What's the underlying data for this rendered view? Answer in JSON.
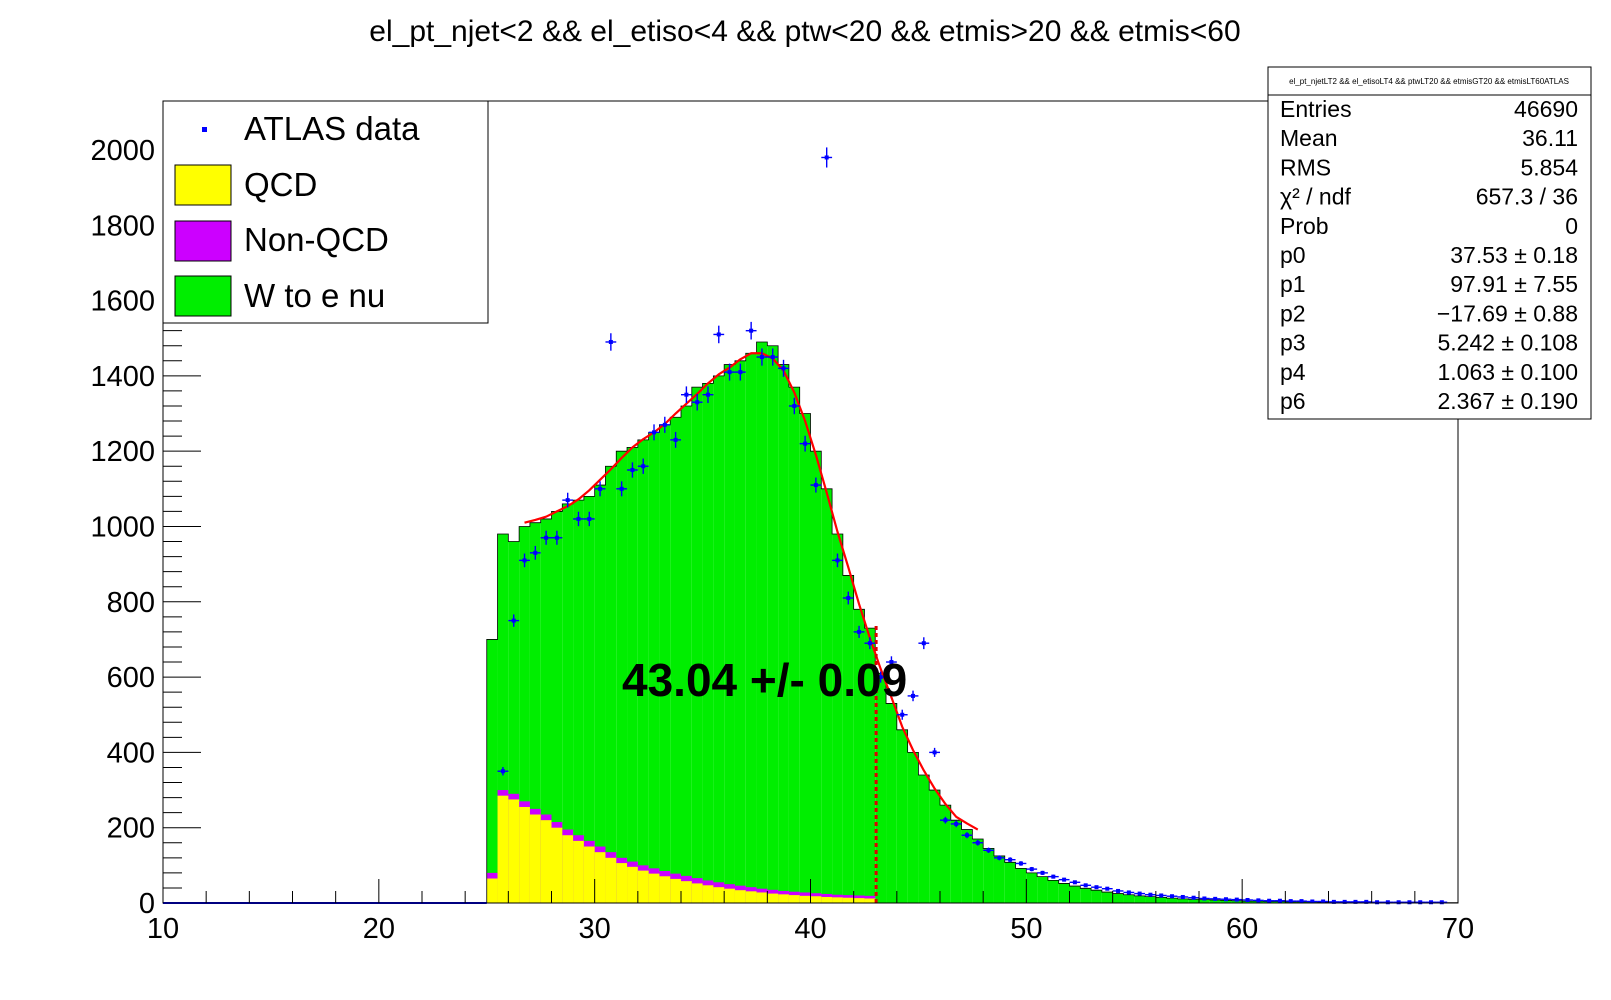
{
  "colors": {
    "data_points": "#0000ff",
    "qcd": "#ffff00",
    "non_qcd": "#cc00ff",
    "w_to_e_nu": "#00ee00",
    "fit": "#ff0000",
    "marker_line": "#dd0000"
  },
  "chart_data": {
    "type": "bar",
    "title": "el_pt_njet<2 && el_etiso<4 && ptw<20 && etmis>20 && etmis<60",
    "xlabel": "",
    "ylabel": "",
    "xlim": [
      10,
      70
    ],
    "ylim": [
      0,
      2130
    ],
    "x_ticks": [
      10,
      20,
      30,
      40,
      50,
      60,
      70
    ],
    "y_ticks": [
      0,
      200,
      400,
      600,
      800,
      1000,
      1200,
      1400,
      1600,
      1800,
      2000
    ],
    "grid": false,
    "bin_width": 0.5,
    "legend": {
      "placement": "top-left",
      "entries": [
        "ATLAS data",
        "QCD",
        "Non-QCD",
        "W to e nu"
      ]
    },
    "series": [
      {
        "name": "W to e nu",
        "x": [
          25.25,
          25.75,
          26.25,
          26.75,
          27.25,
          27.75,
          28.25,
          28.75,
          29.25,
          29.75,
          30.25,
          30.75,
          31.25,
          31.75,
          32.25,
          32.75,
          33.25,
          33.75,
          34.25,
          34.75,
          35.25,
          35.75,
          36.25,
          36.75,
          37.25,
          37.75,
          38.25,
          38.75,
          39.25,
          39.75,
          40.25,
          40.75,
          41.25,
          41.75,
          42.25,
          42.75,
          43.25,
          43.75,
          44.25,
          44.75,
          45.25,
          45.75,
          46.25,
          46.75,
          47.25,
          47.75,
          48.25,
          48.75,
          49.25,
          49.75,
          50.25,
          50.75,
          51.25,
          51.75,
          52.25,
          52.75,
          53.25,
          53.75,
          54.25,
          54.75,
          55.25,
          55.75,
          56.25,
          56.75,
          57.25,
          57.75,
          58.25,
          58.75,
          59.25,
          59.75,
          60.25,
          60.75,
          61.25,
          61.75,
          62.25,
          62.75,
          63.25,
          63.75,
          64.25,
          64.75,
          65.25,
          65.75,
          66.25,
          66.75,
          67.25,
          67.75,
          68.25,
          68.75,
          69.25,
          69.75
        ],
        "values": [
          700,
          980,
          960,
          1000,
          1010,
          1020,
          1040,
          1060,
          1070,
          1080,
          1110,
          1160,
          1200,
          1210,
          1230,
          1250,
          1270,
          1290,
          1320,
          1370,
          1380,
          1400,
          1430,
          1440,
          1460,
          1490,
          1480,
          1430,
          1370,
          1300,
          1200,
          1100,
          980,
          870,
          780,
          730,
          610,
          530,
          460,
          400,
          340,
          300,
          260,
          220,
          195,
          170,
          145,
          125,
          108,
          92,
          80,
          70,
          60,
          52,
          45,
          39,
          34,
          29,
          25,
          22,
          19,
          17,
          15,
          13,
          11,
          10,
          9,
          8,
          7,
          6,
          5,
          5,
          4,
          4,
          3,
          3,
          3,
          2,
          2,
          2,
          2,
          2,
          1,
          1,
          1,
          1,
          1,
          1,
          1,
          1
        ]
      },
      {
        "name": "Non-QCD",
        "x": [
          25.25,
          25.75,
          26.25,
          26.75,
          27.25,
          27.75,
          28.25,
          28.75,
          29.25,
          29.75,
          30.25,
          30.75,
          31.25,
          31.75,
          32.25,
          32.75,
          33.25,
          33.75,
          34.25,
          34.75,
          35.25,
          35.75,
          36.25,
          36.75,
          37.25,
          37.75,
          38.25,
          38.75,
          39.25,
          39.75,
          40.25,
          40.75,
          41.25,
          41.75,
          42.25,
          42.75
        ],
        "values": [
          80,
          300,
          290,
          270,
          250,
          235,
          215,
          195,
          180,
          165,
          150,
          135,
          120,
          110,
          100,
          92,
          85,
          78,
          72,
          66,
          60,
          55,
          50,
          46,
          42,
          38,
          35,
          32,
          30,
          28,
          26,
          24,
          22,
          21,
          20,
          19
        ]
      },
      {
        "name": "QCD",
        "x": [
          25.25,
          25.75,
          26.25,
          26.75,
          27.25,
          27.75,
          28.25,
          28.75,
          29.25,
          29.75,
          30.25,
          30.75,
          31.25,
          31.75,
          32.25,
          32.75,
          33.25,
          33.75,
          34.25,
          34.75,
          35.25,
          35.75,
          36.25,
          36.75,
          37.25,
          37.75,
          38.25,
          38.75,
          39.25,
          39.75,
          40.25,
          40.75,
          41.25,
          41.75,
          42.25,
          42.75
        ],
        "values": [
          65,
          285,
          275,
          255,
          235,
          220,
          200,
          180,
          165,
          150,
          135,
          120,
          106,
          96,
          86,
          78,
          71,
          64,
          58,
          52,
          47,
          42,
          38,
          34,
          31,
          28,
          25,
          23,
          21,
          19,
          18,
          16,
          15,
          14,
          13,
          12
        ]
      },
      {
        "name": "ATLAS data",
        "x": [
          25.75,
          26.25,
          26.75,
          27.25,
          27.75,
          28.25,
          28.75,
          29.25,
          29.75,
          30.25,
          30.75,
          31.25,
          31.75,
          32.25,
          32.75,
          33.25,
          33.75,
          34.25,
          34.75,
          35.25,
          35.75,
          36.25,
          36.75,
          37.25,
          37.75,
          38.25,
          38.75,
          39.25,
          39.75,
          40.25,
          40.75,
          41.25,
          41.75,
          42.25,
          42.75,
          43.25,
          43.75,
          44.25,
          44.75,
          45.25,
          45.75,
          46.25,
          46.75,
          47.25,
          47.75,
          48.25,
          48.75,
          49.25,
          49.75,
          50.25,
          50.75,
          51.25,
          51.75,
          52.25,
          52.75,
          53.25,
          53.75,
          54.25,
          54.75,
          55.25,
          55.75,
          56.25,
          56.75,
          57.25,
          57.75,
          58.25,
          58.75,
          59.25,
          59.75,
          60.25,
          60.75,
          61.25,
          61.75,
          62.25,
          62.75,
          63.25,
          63.75,
          64.25,
          64.75,
          65.25,
          65.75,
          66.25,
          66.75,
          67.25,
          67.75,
          68.25,
          68.75,
          69.25
        ],
        "y": [
          350,
          750,
          910,
          930,
          970,
          970,
          1070,
          1020,
          1020,
          1100,
          1490,
          1100,
          1150,
          1160,
          1250,
          1270,
          1230,
          1350,
          1330,
          1350,
          1510,
          1410,
          1410,
          1520,
          1450,
          1450,
          1420,
          1320,
          1220,
          1110,
          1980,
          910,
          810,
          720,
          690,
          600,
          640,
          500,
          550,
          690,
          400,
          220,
          210,
          180,
          160,
          140,
          120,
          115,
          105,
          90,
          80,
          70,
          62,
          55,
          47,
          42,
          38,
          32,
          28,
          25,
          22,
          20,
          18,
          16,
          14,
          12,
          11,
          10,
          9,
          8,
          7,
          6,
          6,
          5,
          5,
          4,
          4,
          3,
          3,
          3,
          3,
          2,
          2,
          2,
          2,
          2,
          2,
          2
        ]
      }
    ],
    "fit": {
      "name": "fit",
      "x_range": [
        26.75,
        48.0
      ]
    },
    "marker_line": {
      "x": 43.04,
      "y_top": 740
    },
    "annotation": "43.04 +/-  0.09"
  },
  "stats_box": {
    "header": "el_pt_njetLT2 && el_etisoLT4 && ptwLT20 && etmisGT20 && etmisLT60ATLAS",
    "rows": [
      {
        "label": "Entries",
        "value": "46690"
      },
      {
        "label": "Mean",
        "value": "36.11"
      },
      {
        "label": "RMS",
        "value": "5.854"
      },
      {
        "label": "χ² / ndf",
        "value": "657.3 / 36"
      },
      {
        "label": "Prob",
        "value": "0"
      },
      {
        "label": "p0",
        "value": "37.53 ± 0.18"
      },
      {
        "label": "p1",
        "value": "97.91 ± 7.55"
      },
      {
        "label": "p2",
        "value": "−17.69 ± 0.88"
      },
      {
        "label": "p3",
        "value": "5.242 ± 0.108"
      },
      {
        "label": "p4",
        "value": "1.063 ± 0.100"
      },
      {
        "label": "p6",
        "value": "2.367 ± 0.190"
      }
    ]
  }
}
